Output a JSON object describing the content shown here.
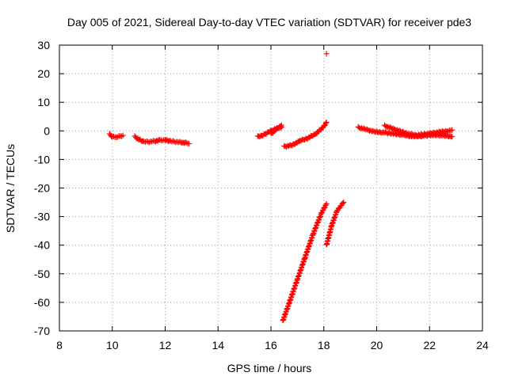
{
  "chart_data": {
    "type": "scatter",
    "title": "Day 005 of 2021, Sidereal Day-to-day VTEC variation (SDTVAR) for receiver pde3",
    "xlabel": "GPS time / hours",
    "ylabel": "SDTVAR / TECUs",
    "xlim": [
      8,
      24
    ],
    "ylim": [
      -70,
      30
    ],
    "x_ticks": [
      8,
      10,
      12,
      14,
      16,
      18,
      20,
      22,
      24
    ],
    "y_ticks": [
      -70,
      -60,
      -50,
      -40,
      -30,
      -20,
      -10,
      0,
      10,
      20,
      30
    ],
    "grid": true,
    "marker": "+",
    "color": "#ff0000",
    "segments": [
      {
        "x": [
          9.9,
          10.0,
          10.1,
          10.2,
          10.3,
          10.4
        ],
        "y": [
          -1.2,
          -2.0,
          -2.3,
          -2.0,
          -1.8,
          -1.6
        ]
      },
      {
        "x": [
          10.85,
          11.0,
          11.2,
          11.4,
          11.6,
          11.8,
          12.0,
          12.2,
          12.4,
          12.6,
          12.8,
          12.9
        ],
        "y": [
          -2.0,
          -3.0,
          -3.8,
          -3.8,
          -3.6,
          -3.3,
          -3.2,
          -3.6,
          -3.8,
          -4.0,
          -4.3,
          -4.5
        ]
      },
      {
        "x": [
          15.5,
          15.7,
          15.9,
          16.1,
          16.3,
          16.4
        ],
        "y": [
          -2.0,
          -1.5,
          -0.5,
          0.5,
          1.0,
          1.3
        ]
      },
      {
        "x": [
          16.0,
          16.2,
          16.4
        ],
        "y": [
          -1.0,
          0.5,
          2.0
        ]
      },
      {
        "x": [
          16.5,
          16.8,
          17.1,
          17.4,
          17.7,
          18.0,
          18.1
        ],
        "y": [
          -5.5,
          -5.0,
          -3.5,
          -2.5,
          -1.0,
          1.5,
          3.0
        ]
      },
      {
        "x": [
          18.1
        ],
        "y": [
          27.0
        ]
      },
      {
        "x": [
          16.45,
          16.7,
          17.0,
          17.3,
          17.6,
          17.9,
          18.1
        ],
        "y": [
          -66.5,
          -60.0,
          -52.0,
          -44.0,
          -36.0,
          -29.0,
          -25.5
        ]
      },
      {
        "x": [
          18.1,
          18.3,
          18.5,
          18.75
        ],
        "y": [
          -40.0,
          -33.0,
          -28.0,
          -25.0
        ]
      },
      {
        "x": [
          19.3,
          19.6,
          19.9,
          20.2,
          20.5,
          20.8,
          21.1,
          21.4,
          21.7,
          22.0,
          22.3,
          22.6,
          22.85
        ],
        "y": [
          1.2,
          0.5,
          -0.3,
          -0.5,
          -0.8,
          -1.2,
          -1.6,
          -2.0,
          -1.8,
          -1.5,
          -1.5,
          -1.7,
          -2.0
        ]
      },
      {
        "x": [
          20.3,
          20.6,
          20.9,
          21.2,
          21.5,
          21.8,
          22.1,
          22.4,
          22.7,
          22.85
        ],
        "y": [
          1.8,
          0.8,
          -0.2,
          -1.0,
          -1.5,
          -1.2,
          -0.8,
          -0.4,
          0.0,
          0.3
        ]
      }
    ]
  }
}
